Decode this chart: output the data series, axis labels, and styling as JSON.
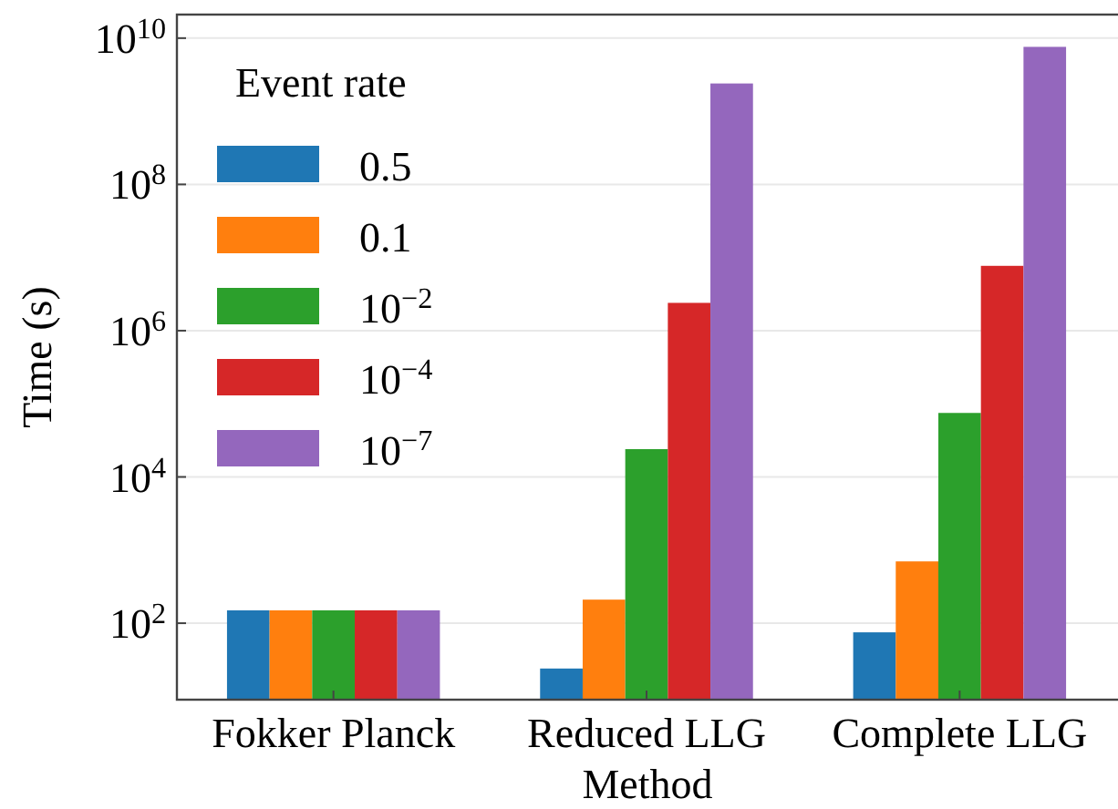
{
  "chart_data": {
    "type": "bar",
    "xlabel": "Method",
    "ylabel": "Time (s)",
    "legend_title": "Event rate",
    "categories": [
      "Fokker Planck",
      "Reduced LLG",
      "Complete LLG"
    ],
    "series": [
      {
        "name": "0.5",
        "color": "#1f77b4",
        "values": [
          150,
          24,
          75
        ]
      },
      {
        "name": "0.1",
        "color": "#ff7f0e",
        "values": [
          150,
          210,
          700
        ]
      },
      {
        "name": "10$^{−2}$",
        "color": "#2ca02c",
        "values": [
          150,
          24000,
          75000
        ]
      },
      {
        "name": "10$^{−4}$",
        "color": "#d62728",
        "values": [
          150,
          2400000,
          7700000
        ]
      },
      {
        "name": "10$^{−7}$",
        "color": "#9467bd",
        "values": [
          150,
          2400000000,
          7600000000
        ]
      }
    ],
    "log": true,
    "ylim": [
      9,
      21000000000
    ],
    "yticks": [
      {
        "value": 100,
        "label": "10$^{2}$"
      },
      {
        "value": 10000,
        "label": "10$^{4}$"
      },
      {
        "value": 1000000,
        "label": "10$^{6}$"
      },
      {
        "value": 100000000,
        "label": "10$^{8}$"
      },
      {
        "value": 10000000000,
        "label": "10$^{10}$"
      }
    ],
    "grid": "y",
    "legend": "top left"
  }
}
